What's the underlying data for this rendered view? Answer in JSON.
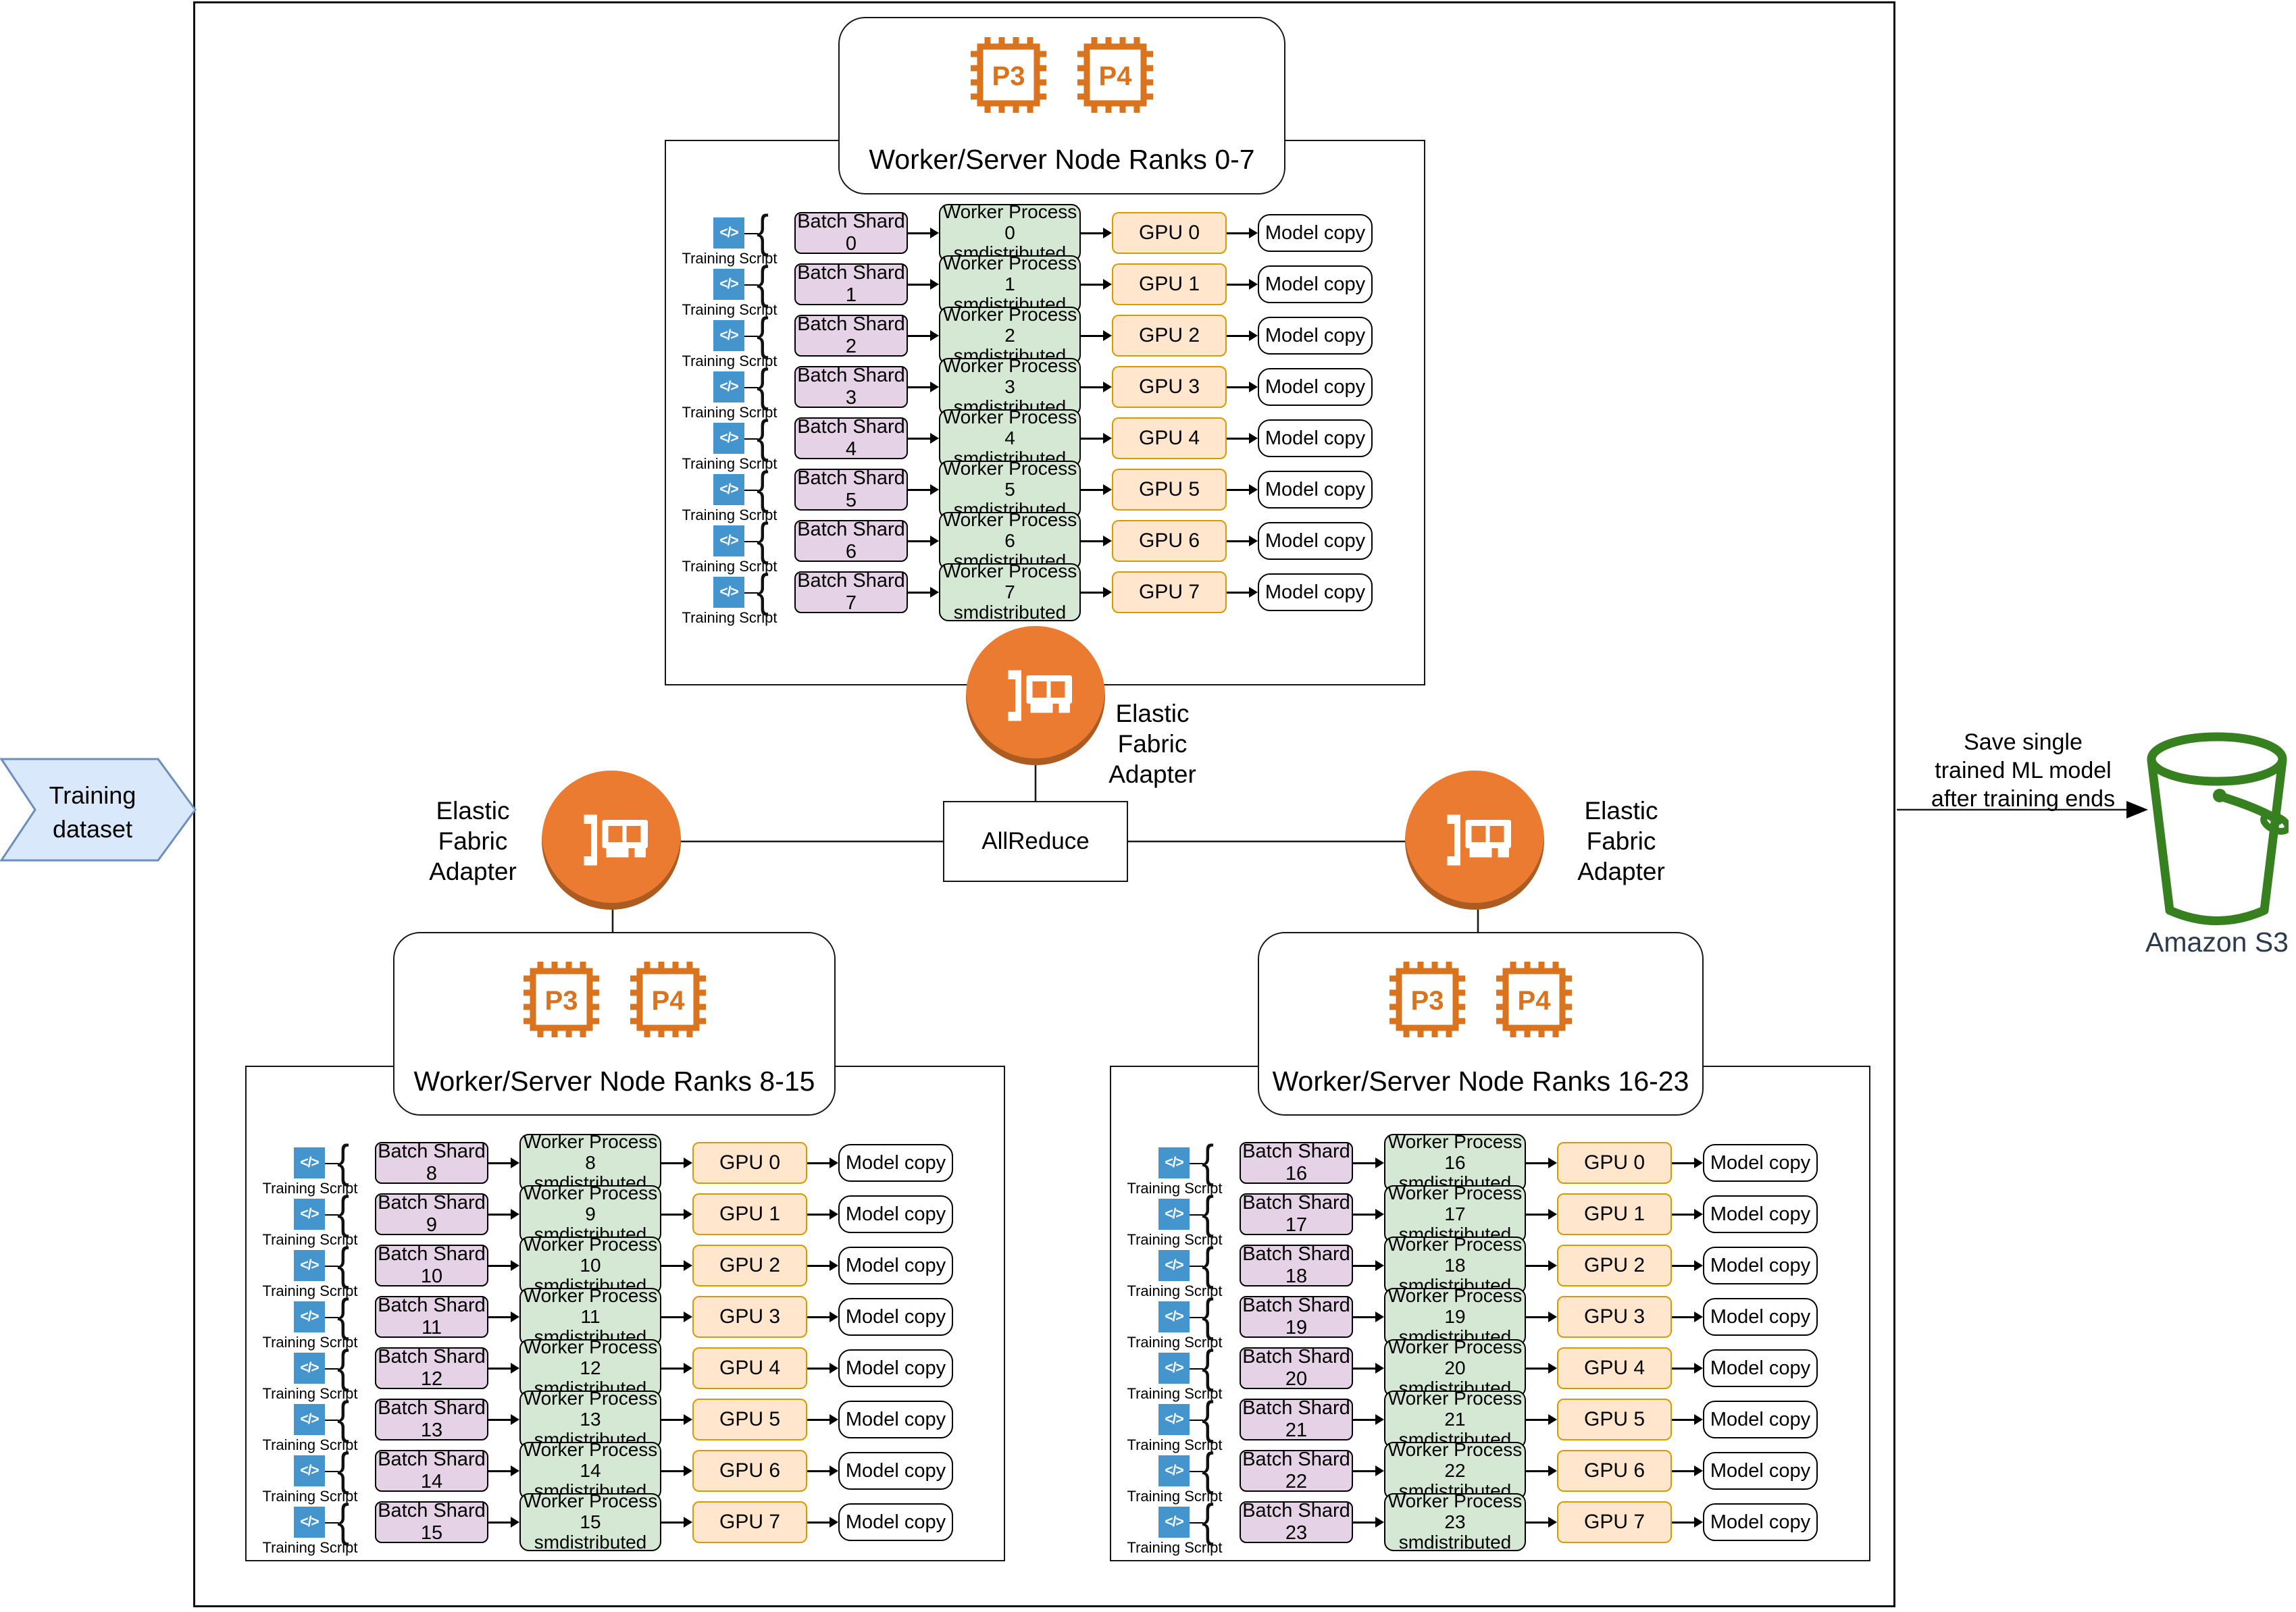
{
  "nodes": {
    "top": {
      "title": "Worker/Server Node Ranks 0-7",
      "chips": [
        "P3",
        "P4"
      ],
      "rows": [
        {
          "shard": "Batch Shard 0",
          "process": "Worker Process 0",
          "gpu": "GPU 0"
        },
        {
          "shard": "Batch Shard 1",
          "process": "Worker Process 1",
          "gpu": "GPU 1"
        },
        {
          "shard": "Batch Shard 2",
          "process": "Worker Process 2",
          "gpu": "GPU 2"
        },
        {
          "shard": "Batch Shard 3",
          "process": "Worker Process 3",
          "gpu": "GPU 3"
        },
        {
          "shard": "Batch Shard 4",
          "process": "Worker Process 4",
          "gpu": "GPU 4"
        },
        {
          "shard": "Batch Shard 5",
          "process": "Worker Process 5",
          "gpu": "GPU 5"
        },
        {
          "shard": "Batch Shard 6",
          "process": "Worker Process 6",
          "gpu": "GPU 6"
        },
        {
          "shard": "Batch Shard 7",
          "process": "Worker Process 7",
          "gpu": "GPU 7"
        }
      ]
    },
    "bottom_left": {
      "title": "Worker/Server Node Ranks 8-15",
      "chips": [
        "P3",
        "P4"
      ],
      "rows": [
        {
          "shard": "Batch Shard 8",
          "process": "Worker Process 8",
          "gpu": "GPU 0"
        },
        {
          "shard": "Batch Shard 9",
          "process": "Worker Process 9",
          "gpu": "GPU 1"
        },
        {
          "shard": "Batch Shard 10",
          "process": "Worker Process 10",
          "gpu": "GPU 2"
        },
        {
          "shard": "Batch Shard 11",
          "process": "Worker Process 11",
          "gpu": "GPU 3"
        },
        {
          "shard": "Batch Shard 12",
          "process": "Worker Process 12",
          "gpu": "GPU 4"
        },
        {
          "shard": "Batch Shard 13",
          "process": "Worker Process 13",
          "gpu": "GPU 5"
        },
        {
          "shard": "Batch Shard 14",
          "process": "Worker Process 14",
          "gpu": "GPU 6"
        },
        {
          "shard": "Batch Shard 15",
          "process": "Worker Process 15",
          "gpu": "GPU 7"
        }
      ]
    },
    "bottom_right": {
      "title": "Worker/Server Node Ranks 16-23",
      "chips": [
        "P3",
        "P4"
      ],
      "rows": [
        {
          "shard": "Batch Shard 16",
          "process": "Worker Process 16",
          "gpu": "GPU 0"
        },
        {
          "shard": "Batch Shard 17",
          "process": "Worker Process 17",
          "gpu": "GPU 1"
        },
        {
          "shard": "Batch Shard 18",
          "process": "Worker Process 18",
          "gpu": "GPU 2"
        },
        {
          "shard": "Batch Shard 19",
          "process": "Worker Process 19",
          "gpu": "GPU 3"
        },
        {
          "shard": "Batch Shard 20",
          "process": "Worker Process 20",
          "gpu": "GPU 4"
        },
        {
          "shard": "Batch Shard 21",
          "process": "Worker Process 21",
          "gpu": "GPU 5"
        },
        {
          "shard": "Batch Shard 22",
          "process": "Worker Process 22",
          "gpu": "GPU 6"
        },
        {
          "shard": "Batch Shard 23",
          "process": "Worker Process 23",
          "gpu": "GPU 7"
        }
      ]
    }
  },
  "row_labels": {
    "training_script": "Training Script",
    "smdistributed": "smdistributed",
    "model_copy": "Model copy",
    "code_glyph": "</>"
  },
  "efa": {
    "label_lines": [
      "Elastic",
      "Fabric",
      "Adapter"
    ]
  },
  "allreduce_label": "AllReduce",
  "dataset": {
    "lines": [
      "Training",
      "dataset"
    ]
  },
  "s3": {
    "note_lines": [
      "Save single",
      "trained ML model",
      "after training ends"
    ],
    "label": "Amazon S3"
  },
  "icons": {
    "training_script": "code-icon",
    "efa": "network-card-icon",
    "node_chip": "processor-chip-icon",
    "s3": "bucket-icon"
  },
  "colors": {
    "accent_orange": "#EB7B30",
    "chip_orange": "#D9731E",
    "code_blue": "#4495CE",
    "shard_fill": "#E6D2E6",
    "process_fill": "#D5E8D4",
    "gpu_fill": "#FFE6CC",
    "gpu_border": "#D79B00",
    "dataset_fill": "#DAE8FC",
    "dataset_border": "#6C8EBF",
    "bucket_green": "#36801F",
    "s3_text": "#2B3B4D",
    "line": "#000000"
  }
}
